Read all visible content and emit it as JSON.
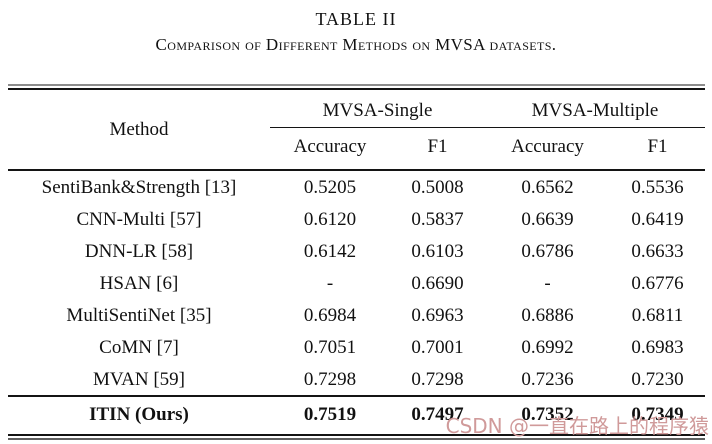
{
  "caption": {
    "number": "TABLE II",
    "title": "Comparison of Different Methods on MVSA datasets."
  },
  "table": {
    "method_header": "Method",
    "groups": [
      "MVSA-Single",
      "MVSA-Multiple"
    ],
    "sub_headers": [
      "Accuracy",
      "F1",
      "Accuracy",
      "F1"
    ],
    "rows": [
      {
        "method": "SentiBank&Strength [13]",
        "values": [
          "0.5205",
          "0.5008",
          "0.6562",
          "0.5536"
        ],
        "bold": false
      },
      {
        "method": "CNN-Multi [57]",
        "values": [
          "0.6120",
          "0.5837",
          "0.6639",
          "0.6419"
        ],
        "bold": false
      },
      {
        "method": "DNN-LR [58]",
        "values": [
          "0.6142",
          "0.6103",
          "0.6786",
          "0.6633"
        ],
        "bold": false
      },
      {
        "method": "HSAN [6]",
        "values": [
          "-",
          "0.6690",
          "-",
          "0.6776"
        ],
        "bold": false
      },
      {
        "method": "MultiSentiNet [35]",
        "values": [
          "0.6984",
          "0.6963",
          "0.6886",
          "0.6811"
        ],
        "bold": false
      },
      {
        "method": "CoMN [7]",
        "values": [
          "0.7051",
          "0.7001",
          "0.6992",
          "0.6983"
        ],
        "bold": false
      },
      {
        "method": "MVAN [59]",
        "values": [
          "0.7298",
          "0.7298",
          "0.7236",
          "0.7230"
        ],
        "bold": false
      },
      {
        "method": "ITIN (Ours)",
        "values": [
          "0.7519",
          "0.7497",
          "0.7352",
          "0.7349"
        ],
        "bold": true
      }
    ]
  },
  "watermark": {
    "text": "CSDN @一直在路上的程序猿",
    "color": "#d09a9a"
  }
}
